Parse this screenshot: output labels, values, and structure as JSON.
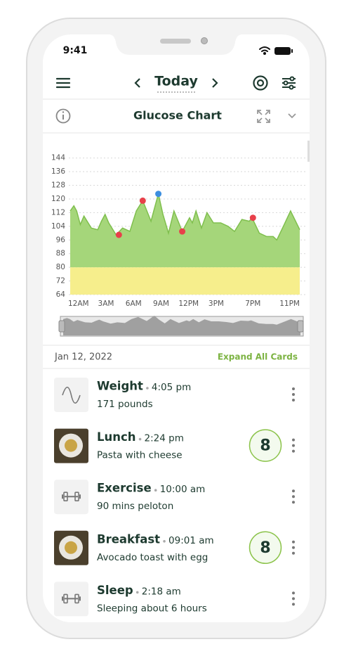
{
  "status_bar": {
    "time": "9:41"
  },
  "nav": {
    "title": "Today"
  },
  "chart_data": {
    "type": "area",
    "title": "Glucose Chart",
    "x": [
      -0.9,
      -0.5,
      -0.2,
      0.2,
      0.6,
      1.4,
      2.1,
      2.5,
      2.9,
      3.3,
      4.1,
      4.8,
      5.6,
      6.3,
      7.0,
      7.6,
      7.9,
      8.2,
      8.7,
      9.2,
      9.8,
      10.4,
      11.0,
      11.3,
      12.1,
      12.4,
      12.8,
      13.4,
      14.0,
      14.7,
      15.5,
      16.3,
      17.0,
      17.8,
      18.6,
      18.9,
      19.7,
      20.5,
      21.2,
      21.6,
      22.4,
      23.1,
      24.1
    ],
    "values": [
      113,
      116,
      113,
      105,
      110,
      103,
      102,
      107,
      111,
      106,
      99,
      103,
      101,
      113,
      119,
      111,
      107,
      113,
      123,
      111,
      100,
      113,
      105,
      101,
      109,
      106,
      113,
      103,
      112,
      106,
      106,
      104,
      101,
      108,
      107,
      109,
      100,
      98,
      98,
      96,
      105,
      113,
      102
    ],
    "xlim": [
      -0.9,
      24.1
    ],
    "xticks": [
      {
        "value": 0,
        "label": "12AM"
      },
      {
        "value": 3,
        "label": "3AM"
      },
      {
        "value": 6,
        "label": "6AM"
      },
      {
        "value": 9,
        "label": "9AM"
      },
      {
        "value": 12,
        "label": "12PM"
      },
      {
        "value": 15,
        "label": "3PM"
      },
      {
        "value": 19,
        "label": "7PM"
      },
      {
        "value": 23,
        "label": "11PM"
      }
    ],
    "ylim": [
      64,
      148
    ],
    "yticks": [
      64,
      72,
      80,
      88,
      96,
      104,
      112,
      120,
      128,
      136,
      144
    ],
    "target_low": 80,
    "color": "#a5d67a",
    "line_color": "#7fbf4d",
    "low_color": "#f6ee8c",
    "grid": true,
    "events": {
      "x": [
        4.4,
        7.0,
        8.7,
        11.3,
        19.0
      ],
      "values": [
        99,
        119,
        123,
        101,
        109
      ],
      "colors": [
        "#e8404a",
        "#e8404a",
        "#3d8fe0",
        "#e8404a",
        "#e8404a"
      ]
    }
  },
  "log": {
    "date": "Jan 12, 2022",
    "expand_label": "Expand All Cards",
    "cards": [
      {
        "title": "Weight",
        "time": "4:05 pm",
        "detail": "171 pounds",
        "icon": "wave"
      },
      {
        "title": "Lunch",
        "time": "2:24 pm",
        "detail": "Pasta with cheese",
        "icon": "photo",
        "score": 8
      },
      {
        "title": "Exercise",
        "time": "10:00 am",
        "detail": "90 mins peloton",
        "icon": "dumbbell"
      },
      {
        "title": "Breakfast",
        "time": "09:01 am",
        "detail": "Avocado toast with egg",
        "icon": "photo",
        "score": 8
      },
      {
        "title": "Sleep",
        "time": "2:18 am",
        "detail": "Sleeping about 6 hours",
        "icon": "dumbbell"
      }
    ]
  }
}
